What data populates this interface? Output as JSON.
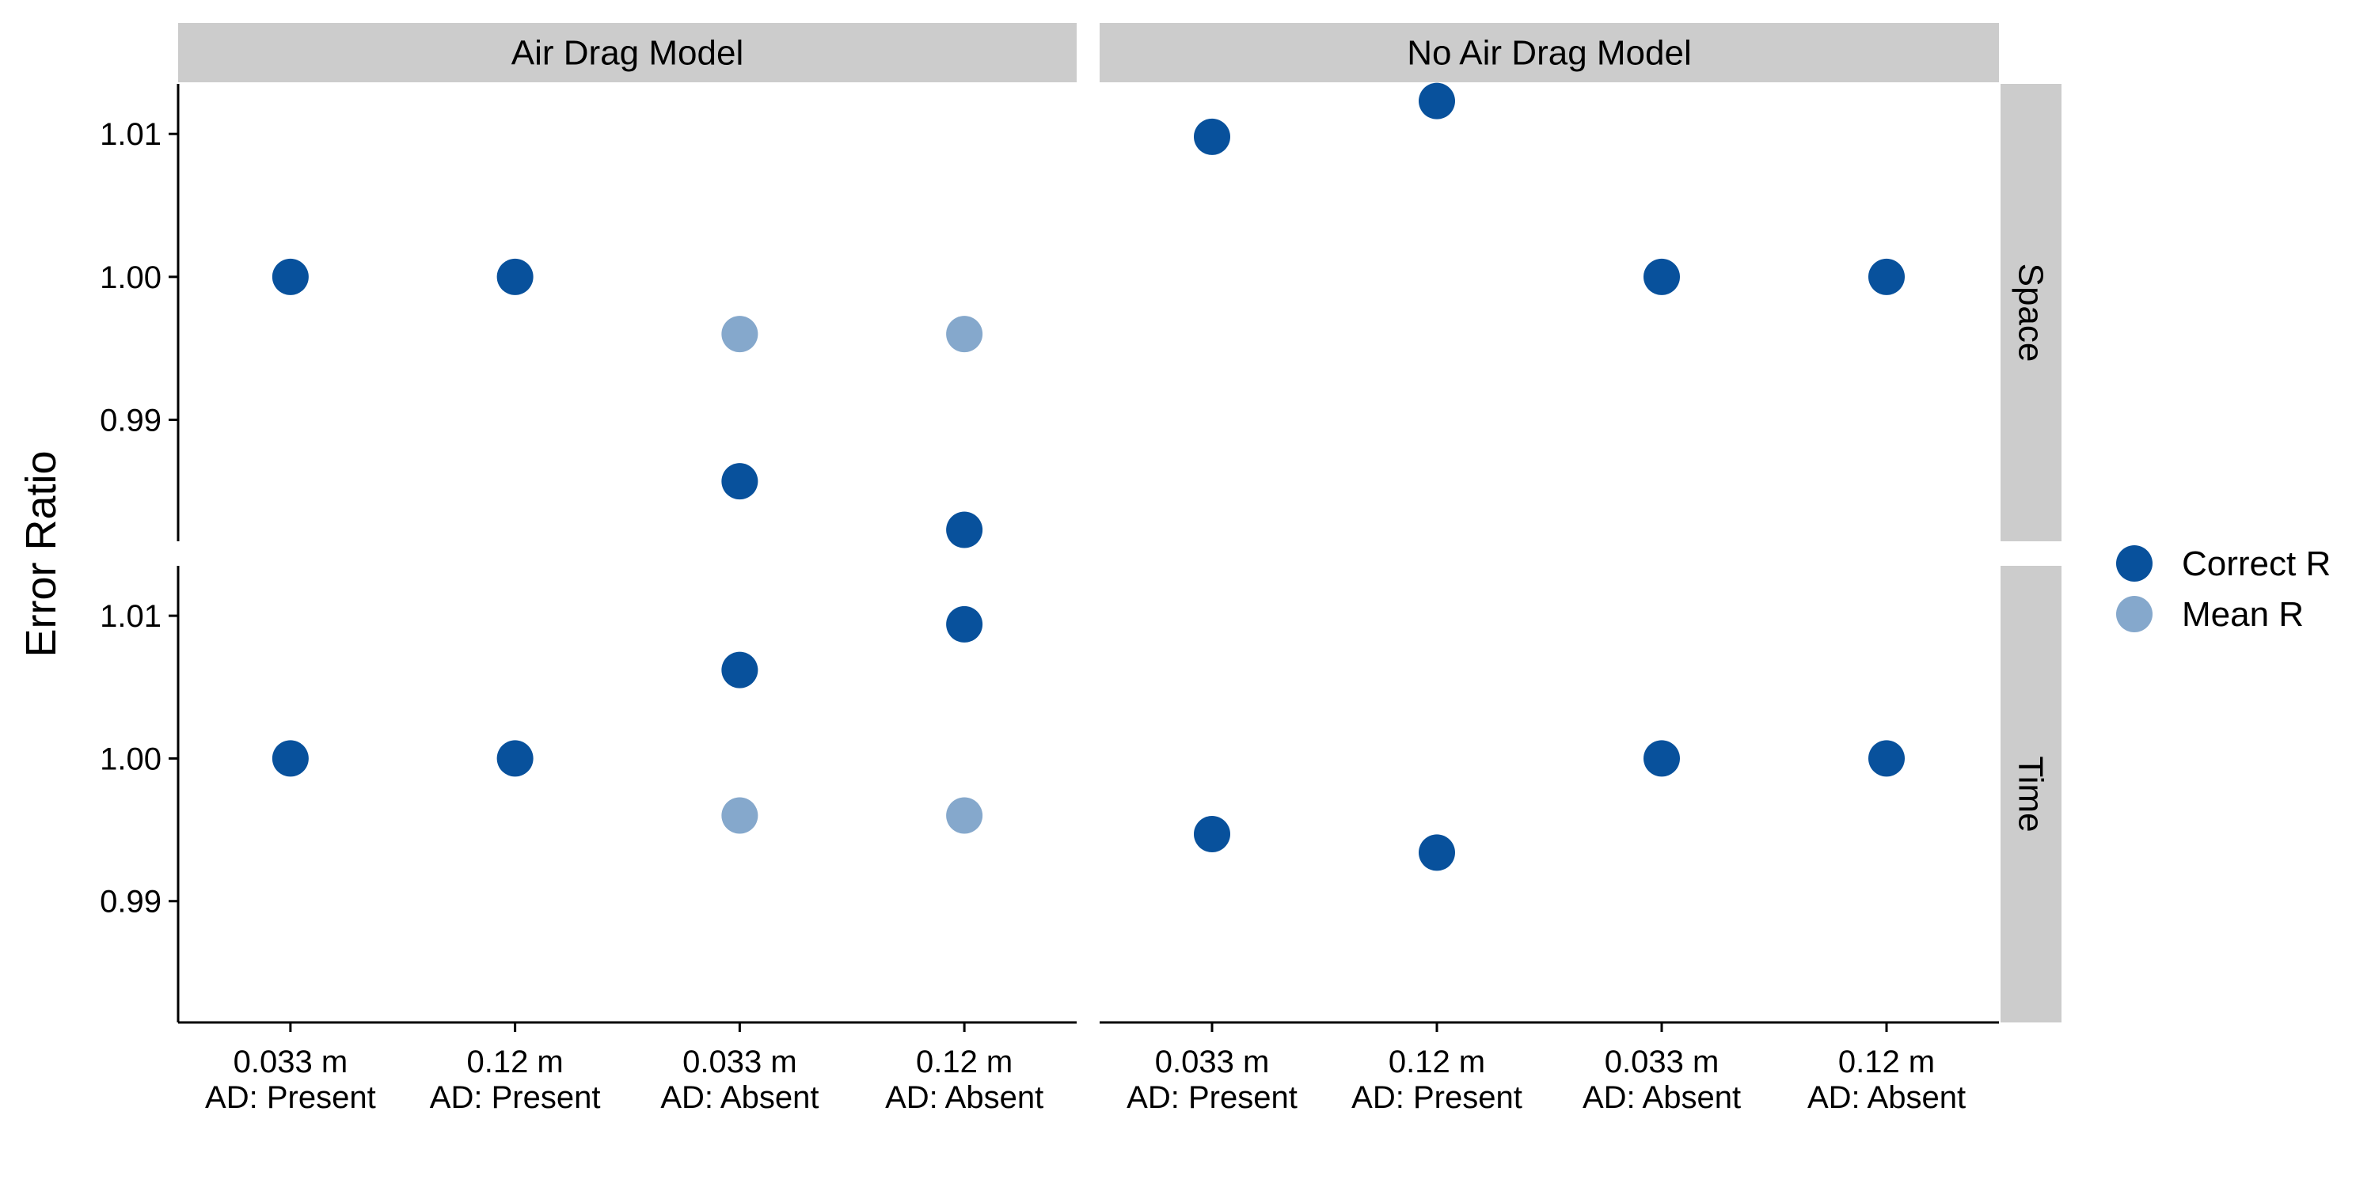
{
  "chart_data": {
    "type": "scatter",
    "ylabel": "Error Ratio",
    "x_categories": [
      [
        "0.033 m",
        "AD: Present"
      ],
      [
        "0.12 m",
        "AD: Present"
      ],
      [
        "0.033 m",
        "AD: Absent"
      ],
      [
        "0.12 m",
        "AD: Absent"
      ]
    ],
    "columns": [
      "Air Drag Model",
      "No Air Drag Model"
    ],
    "rows": [
      "Space",
      "Time"
    ],
    "ylim": [
      0.9815,
      1.0135
    ],
    "yticks": [
      0.99,
      1.0,
      1.01
    ],
    "ytick_labels": [
      "0.99",
      "1.00",
      "1.01"
    ],
    "legend": {
      "position": "right",
      "entries": [
        {
          "name": "Correct R",
          "color": "#08519c"
        },
        {
          "name": "Mean R",
          "color": "#85a8cc"
        }
      ]
    },
    "panels": [
      {
        "column": "Air Drag Model",
        "row": "Space",
        "series": [
          {
            "name": "Correct R",
            "values": [
              1.0,
              1.0,
              0.9857,
              0.9823
            ]
          },
          {
            "name": "Mean R",
            "values": [
              null,
              null,
              0.996,
              0.996
            ]
          }
        ]
      },
      {
        "column": "No Air Drag Model",
        "row": "Space",
        "series": [
          {
            "name": "Correct R",
            "values": [
              1.0098,
              1.0123,
              1.0,
              1.0
            ]
          },
          {
            "name": "Mean R",
            "values": [
              null,
              null,
              null,
              null
            ]
          }
        ]
      },
      {
        "column": "Air Drag Model",
        "row": "Time",
        "series": [
          {
            "name": "Correct R",
            "values": [
              1.0,
              1.0,
              1.0062,
              1.0094
            ]
          },
          {
            "name": "Mean R",
            "values": [
              null,
              null,
              0.996,
              0.996
            ]
          }
        ]
      },
      {
        "column": "No Air Drag Model",
        "row": "Time",
        "series": [
          {
            "name": "Correct R",
            "values": [
              0.9947,
              0.9934,
              1.0,
              1.0
            ]
          },
          {
            "name": "Mean R",
            "values": [
              null,
              null,
              null,
              null
            ]
          }
        ]
      }
    ]
  }
}
